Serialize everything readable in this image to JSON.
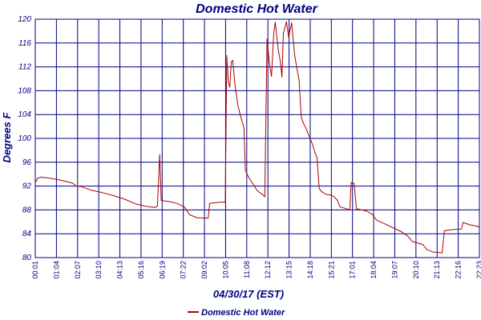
{
  "chart_data": {
    "type": "line",
    "title": "Domestic Hot Water",
    "xlabel": "04/30/17 (EST)",
    "ylabel": "Degrees F",
    "ylim": [
      80,
      120
    ],
    "yticks": [
      80,
      84,
      88,
      92,
      96,
      100,
      104,
      108,
      112,
      116,
      120
    ],
    "xticks": [
      "00:01",
      "01:04",
      "02:07",
      "03:10",
      "04:13",
      "05:16",
      "06:19",
      "07:22",
      "09:02",
      "10:05",
      "11:08",
      "12:12",
      "13:15",
      "14:18",
      "15:21",
      "17:01",
      "18:04",
      "19:07",
      "20:10",
      "21:13",
      "22:16",
      "22:23"
    ],
    "grid": true,
    "legend_position": "bottom-left",
    "colors": {
      "series": "#aa0000",
      "axes": "#000080",
      "grid": "#000080"
    },
    "series": [
      {
        "name": "Domestic Hot Water",
        "values": [
          [
            0,
            92.6
          ],
          [
            3,
            93.3
          ],
          [
            8,
            93.5
          ],
          [
            20,
            93.3
          ],
          [
            30,
            93.1
          ],
          [
            40,
            92.8
          ],
          [
            50,
            92.5
          ],
          [
            55,
            92.0
          ],
          [
            62,
            91.9
          ],
          [
            75,
            91.3
          ],
          [
            90,
            90.9
          ],
          [
            105,
            90.4
          ],
          [
            120,
            89.8
          ],
          [
            135,
            89.0
          ],
          [
            148,
            88.6
          ],
          [
            160,
            88.4
          ],
          [
            164,
            88.6
          ],
          [
            167,
            97.3
          ],
          [
            169,
            89.6
          ],
          [
            180,
            89.4
          ],
          [
            190,
            89.1
          ],
          [
            200,
            88.5
          ],
          [
            207,
            87.2
          ],
          [
            217,
            86.7
          ],
          [
            232,
            86.6
          ],
          [
            234,
            89.1
          ],
          [
            248,
            89.3
          ],
          [
            255,
            89.3
          ],
          [
            257,
            113.9
          ],
          [
            259,
            109.5
          ],
          [
            261,
            108.6
          ],
          [
            263,
            112.8
          ],
          [
            265,
            113.1
          ],
          [
            268,
            109.0
          ],
          [
            272,
            105.5
          ],
          [
            276,
            103.5
          ],
          [
            280,
            101.8
          ],
          [
            282,
            94.6
          ],
          [
            287,
            93.3
          ],
          [
            292,
            92.4
          ],
          [
            298,
            91.2
          ],
          [
            306,
            90.5
          ],
          [
            308,
            90.2
          ],
          [
            311,
            116.7
          ],
          [
            314,
            112.8
          ],
          [
            317,
            110.4
          ],
          [
            320,
            117.5
          ],
          [
            322,
            119.5
          ],
          [
            326,
            115.0
          ],
          [
            329,
            112.8
          ],
          [
            331,
            110.3
          ],
          [
            333,
            117.6
          ],
          [
            337,
            119.6
          ],
          [
            340,
            117.0
          ],
          [
            344,
            119.4
          ],
          [
            348,
            114.0
          ],
          [
            351,
            111.8
          ],
          [
            354,
            109.8
          ],
          [
            357,
            103.5
          ],
          [
            360,
            102.5
          ],
          [
            364,
            101.5
          ],
          [
            368,
            100.2
          ],
          [
            372,
            99.0
          ],
          [
            375,
            97.7
          ],
          [
            378,
            96.8
          ],
          [
            381,
            91.6
          ],
          [
            384,
            91.1
          ],
          [
            390,
            90.6
          ],
          [
            396,
            90.5
          ],
          [
            400,
            90.3
          ],
          [
            405,
            89.7
          ],
          [
            409,
            88.5
          ],
          [
            415,
            88.3
          ],
          [
            422,
            88.0
          ],
          [
            424,
            92.6
          ],
          [
            428,
            92.4
          ],
          [
            431,
            88.2
          ],
          [
            445,
            87.8
          ],
          [
            452,
            87.3
          ],
          [
            458,
            86.3
          ],
          [
            470,
            85.6
          ],
          [
            482,
            84.9
          ],
          [
            492,
            84.3
          ],
          [
            500,
            83.6
          ],
          [
            506,
            82.7
          ],
          [
            512,
            82.5
          ],
          [
            520,
            82.2
          ],
          [
            526,
            81.3
          ],
          [
            535,
            80.9
          ],
          [
            546,
            80.8
          ],
          [
            549,
            84.5
          ],
          [
            560,
            84.7
          ],
          [
            572,
            84.8
          ],
          [
            574,
            85.9
          ],
          [
            583,
            85.5
          ],
          [
            592,
            85.3
          ],
          [
            596,
            85.1
          ]
        ]
      }
    ]
  }
}
